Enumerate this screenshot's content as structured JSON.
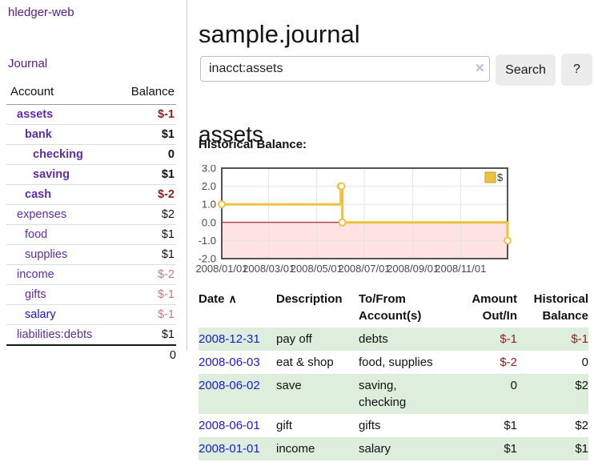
{
  "app": {
    "brand": "hledger-web"
  },
  "sidebar": {
    "journal_label": "Journal",
    "account_header": "Account",
    "balance_header": "Balance",
    "accounts": [
      {
        "name": "assets",
        "balance": "$-1",
        "depth": 1,
        "bold": true,
        "balance_style": "negative-strong",
        "link_style": "purple"
      },
      {
        "name": "bank",
        "balance": "$1",
        "depth": 2,
        "bold": true,
        "balance_style": "normal",
        "link_style": "purple"
      },
      {
        "name": "checking",
        "balance": "0",
        "depth": 3,
        "bold": true,
        "balance_style": "normal",
        "link_style": "purple"
      },
      {
        "name": "saving",
        "balance": "$1",
        "depth": 3,
        "bold": true,
        "balance_style": "normal",
        "link_style": "purple"
      },
      {
        "name": "cash",
        "balance": "$-2",
        "depth": 2,
        "bold": true,
        "balance_style": "negative-strong",
        "link_style": "purple"
      },
      {
        "name": "expenses",
        "balance": "$2",
        "depth": 1,
        "bold": false,
        "balance_style": "normal",
        "link_style": "purple"
      },
      {
        "name": "food",
        "balance": "$1",
        "depth": 2,
        "bold": false,
        "balance_style": "normal",
        "link_style": "purple"
      },
      {
        "name": "supplies",
        "balance": "$1",
        "depth": 2,
        "bold": false,
        "balance_style": "normal",
        "link_style": "purple"
      },
      {
        "name": "income",
        "balance": "$-2",
        "depth": 1,
        "bold": false,
        "balance_style": "negative-muted",
        "link_style": "purple"
      },
      {
        "name": "gifts",
        "balance": "$-1",
        "depth": 2,
        "bold": false,
        "balance_style": "negative-muted",
        "link_style": "purple"
      },
      {
        "name": "salary",
        "balance": "$-1",
        "depth": 2,
        "bold": false,
        "balance_style": "negative-muted",
        "link_style": "blue"
      },
      {
        "name": "liabilities:debts",
        "balance": "$1",
        "depth": 1,
        "bold": false,
        "balance_style": "normal",
        "link_style": "purple"
      }
    ],
    "total": "0"
  },
  "header": {
    "title": "sample.journal"
  },
  "search": {
    "value": "inacct:assets",
    "clear_icon": "✕",
    "button_label": "Search",
    "help_label": "?"
  },
  "content": {
    "account_heading": "assets",
    "chart_title": "Historical Balance:"
  },
  "chart_data": {
    "type": "line",
    "step": true,
    "title": "Historical Balance",
    "series": [
      {
        "name": "$",
        "color": "#edc240",
        "points": [
          {
            "date": "2008-01-01",
            "value": 1
          },
          {
            "date": "2008-06-01",
            "value": 2
          },
          {
            "date": "2008-06-02",
            "value": 2
          },
          {
            "date": "2008-06-03",
            "value": 0
          },
          {
            "date": "2008-12-31",
            "value": -1
          }
        ]
      }
    ],
    "x_range": [
      "2008-01-01",
      "2008-12-31"
    ],
    "ylim": [
      -2.0,
      3.0
    ],
    "y_ticks": [
      3.0,
      2.0,
      1.0,
      0.0,
      -1.0,
      -2.0
    ],
    "x_ticks": [
      {
        "label": "2008/01/01",
        "date": "2008-01-01"
      },
      {
        "label": "2008/03/01",
        "date": "2008-03-01"
      },
      {
        "label": "2008/05/01",
        "date": "2008-05-01"
      },
      {
        "label": "2008/07/01",
        "date": "2008-07-01"
      },
      {
        "label": "2008/09/01",
        "date": "2008-09-01"
      },
      {
        "label": "2008/11/01",
        "date": "2008-11-01"
      }
    ],
    "grid": true,
    "legend": {
      "label": "$",
      "position": "top-right"
    },
    "zero_line_color": "#8b0000",
    "negative_region_color": "rgba(255,0,0,0.11)",
    "border_color": "#545454",
    "grid_color": "#e3e3e3",
    "tick_label_color": "#494949"
  },
  "register": {
    "headers": {
      "date": "Date",
      "sort_caret": "∧",
      "description": "Description",
      "accounts": "To/From Account(s)",
      "amount": "Amount Out/In",
      "balance": "Historical Balance"
    },
    "rows": [
      {
        "date": "2008-12-31",
        "description": "pay off",
        "accounts": "debts",
        "amount": "$-1",
        "balance": "$-1"
      },
      {
        "date": "2008-06-03",
        "description": "eat & shop",
        "accounts": "food, supplies",
        "amount": "$-2",
        "balance": "0"
      },
      {
        "date": "2008-06-02",
        "description": "save",
        "accounts": "saving, checking",
        "amount": "0",
        "balance": "$2"
      },
      {
        "date": "2008-06-01",
        "description": "gift",
        "accounts": "gifts",
        "amount": "$1",
        "balance": "$2"
      },
      {
        "date": "2008-01-01",
        "description": "income",
        "accounts": "salary",
        "amount": "$1",
        "balance": "$1"
      }
    ]
  },
  "colors": {
    "link_purple": "#5e2ca5",
    "link_blue": "#1414cc",
    "negative_strong": "#8f1f1f",
    "negative_muted": "#c08080",
    "row_stripe_green": "#ddeedd",
    "series_gold": "#edc240"
  }
}
